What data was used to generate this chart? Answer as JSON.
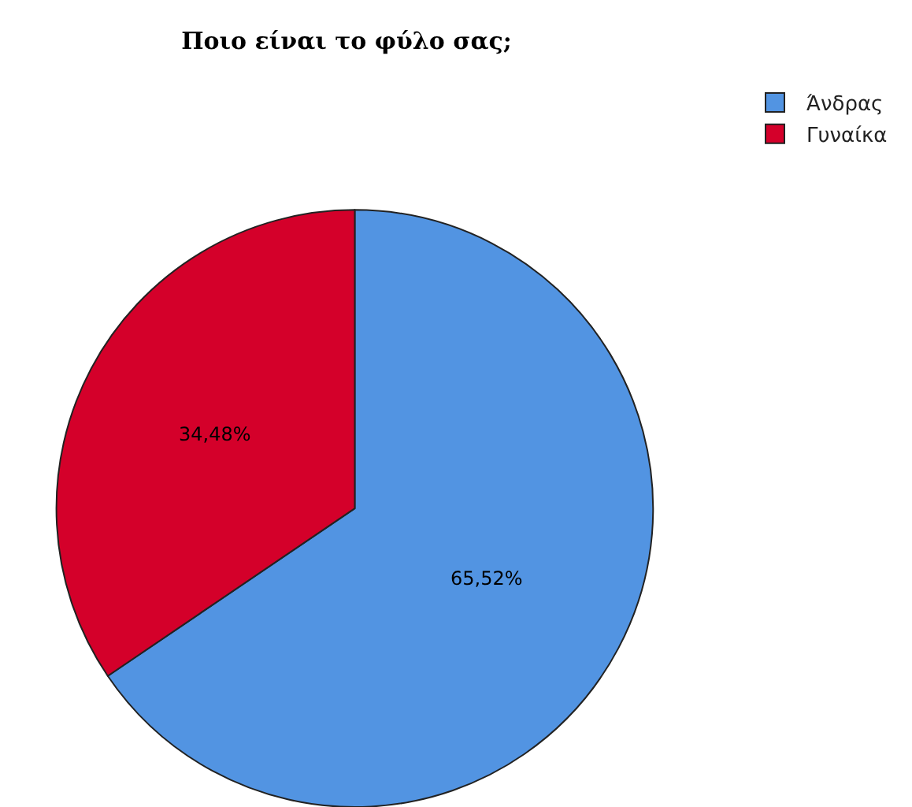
{
  "chart_data": {
    "type": "pie",
    "title": "Ποιο είναι το φύλο σας;",
    "categories": [
      "Άνδρας",
      "Γυναίκα"
    ],
    "values": [
      65.52,
      34.48
    ],
    "value_labels": [
      "65,52%",
      "34,48%"
    ],
    "colors": [
      "#5294e2",
      "#d4002a"
    ],
    "legend": "top right"
  }
}
